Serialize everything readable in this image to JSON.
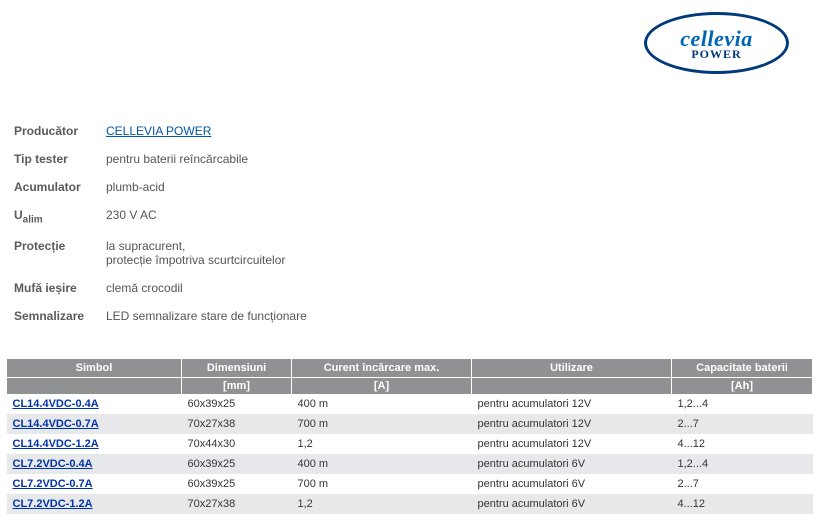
{
  "logo": {
    "name": "cellevia",
    "sub": "POWER"
  },
  "specs": [
    {
      "label": "Producător",
      "value": "CELLEVIA POWER",
      "link": true
    },
    {
      "label": "Tip tester",
      "value": "pentru baterii reîncărcabile"
    },
    {
      "label": "Acumulator",
      "value": "plumb-acid"
    },
    {
      "label_html": "U<sub>alim</sub>",
      "value": "230 V AC"
    },
    {
      "label": "Protecție",
      "value_multiline": [
        "la supracurent,",
        "protecție împotriva scurtcircuitelor"
      ]
    },
    {
      "label": "Mufă ieșire",
      "value": "clemă crocodil"
    },
    {
      "label": "Semnalizare",
      "value": "LED semnalizare stare de funcționare"
    }
  ],
  "table": {
    "headers": [
      "Simbol",
      "Dimensiuni",
      "Curent încărcare max.",
      "Utilizare",
      "Capacitate baterii"
    ],
    "units": [
      "",
      "[mm]",
      "[A]",
      "",
      "[Ah]"
    ],
    "rows": [
      {
        "symbol": "CL14.4VDC-0.4A",
        "dim": "60x39x25",
        "current": "400 m",
        "usage": "pentru acumulatori 12V",
        "cap": "1,2...4"
      },
      {
        "symbol": "CL14.4VDC-0.7A",
        "dim": "70x27x38",
        "current": "700 m",
        "usage": "pentru acumulatori 12V",
        "cap": "2...7"
      },
      {
        "symbol": "CL14.4VDC-1.2A",
        "dim": "70x44x30",
        "current": "1,2",
        "usage": "pentru acumulatori 12V",
        "cap": "4...12"
      },
      {
        "symbol": "CL7.2VDC-0.4A",
        "dim": "60x39x25",
        "current": "400 m",
        "usage": "pentru acumulatori 6V",
        "cap": "1,2...4"
      },
      {
        "symbol": "CL7.2VDC-0.7A",
        "dim": "60x39x25",
        "current": "700 m",
        "usage": "pentru acumulatori 6V",
        "cap": "2...7"
      },
      {
        "symbol": "CL7.2VDC-1.2A",
        "dim": "70x27x38",
        "current": "1,2",
        "usage": "pentru acumulatori 6V",
        "cap": "4...12"
      }
    ]
  }
}
